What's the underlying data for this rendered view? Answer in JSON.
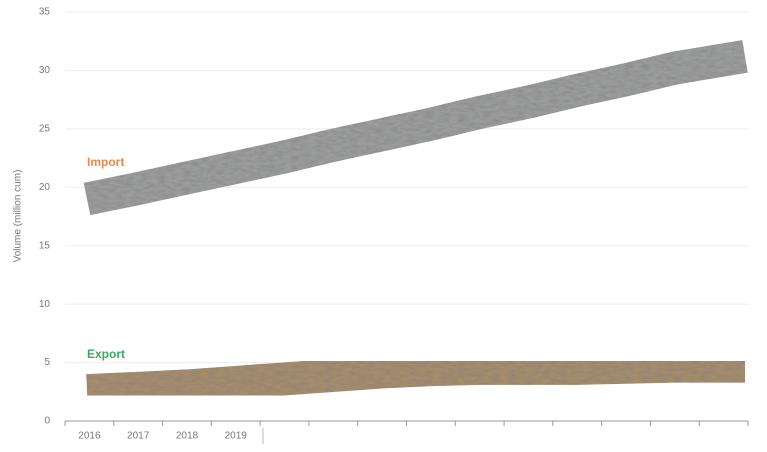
{
  "chart_data": {
    "type": "line",
    "y_label": "Volume (million cum)",
    "categories": [
      "2016",
      "2017",
      "2018",
      "2019",
      null,
      null,
      null,
      null,
      null,
      null,
      null,
      null,
      null,
      null
    ],
    "series": [
      {
        "name": "Import",
        "color": "#e8894a",
        "band_color": "#9a9c9e",
        "values": [
          19.0,
          19.9,
          20.8,
          21.7,
          22.6,
          23.6,
          24.5,
          25.4,
          26.4,
          27.3,
          28.3,
          29.2,
          30.2,
          31.2
        ]
      },
      {
        "name": "Export",
        "color": "#3aaa5c",
        "band_color": "#a58c6a",
        "values": [
          2.6,
          2.8,
          3.0,
          3.3,
          3.6,
          3.9,
          4.2,
          4.4,
          4.5,
          4.5,
          4.5,
          4.6,
          4.7,
          4.7
        ]
      }
    ],
    "ylim": [
      0,
      35
    ],
    "yticks": [
      0,
      5,
      10,
      15,
      20,
      25,
      30,
      35
    ],
    "grid": true
  }
}
